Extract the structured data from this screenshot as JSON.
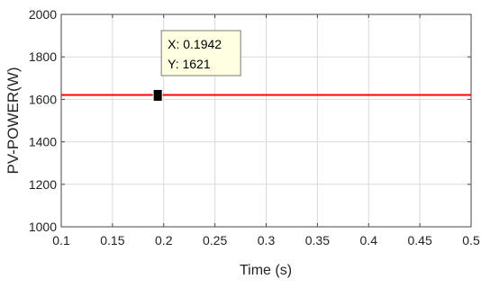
{
  "chart_data": {
    "type": "line",
    "xlabel": "Time (s)",
    "ylabel": "PV-POWER(W)",
    "xlim": [
      0.1,
      0.5
    ],
    "ylim": [
      1000,
      2000
    ],
    "x_ticks": [
      "0.1",
      "0.15",
      "0.2",
      "0.25",
      "0.3",
      "0.35",
      "0.4",
      "0.45",
      "0.5"
    ],
    "y_ticks": [
      "1000",
      "1200",
      "1400",
      "1600",
      "1800",
      "2000"
    ],
    "grid": true,
    "series": [
      {
        "color": "#ff0000",
        "x": [
          0.1,
          0.5
        ],
        "y": [
          1621,
          1621
        ]
      }
    ],
    "datatip": {
      "x": 0.1942,
      "y": 1621,
      "x_label": "X: 0.1942",
      "y_label": "Y: 1621",
      "background": "#ffffe1",
      "marker_color": "#000000"
    }
  }
}
